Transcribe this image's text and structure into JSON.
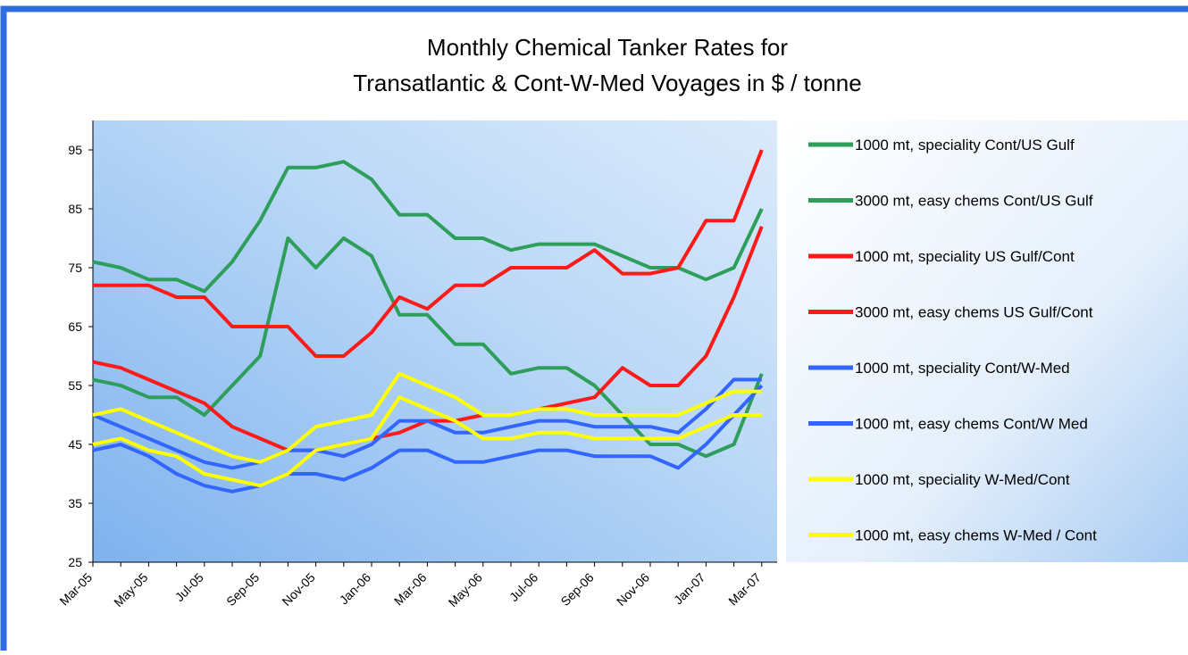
{
  "chart_data": {
    "type": "line",
    "title": "Monthly Chemical Tanker Rates for",
    "subtitle": "Transatlantic & Cont-W-Med Voyages in $ / tonne",
    "categories": [
      "Mar-05",
      null,
      "May-05",
      null,
      "Jul-05",
      null,
      "Sep-05",
      null,
      "Nov-05",
      null,
      "Jan-06",
      null,
      "Mar-06",
      null,
      "May-06",
      null,
      "Jul-06",
      null,
      "Sep-06",
      null,
      "Nov-06",
      null,
      "Jan-07",
      null,
      "Mar-07"
    ],
    "series": [
      {
        "name": "1000 mt, speciality Cont/US Gulf",
        "color": "#2e9e5b",
        "values": [
          76,
          75,
          73,
          73,
          71,
          76,
          83,
          92,
          92,
          93,
          90,
          84,
          84,
          80,
          80,
          78,
          79,
          79,
          79,
          77,
          75,
          75,
          73,
          75,
          85
        ]
      },
      {
        "name": "3000 mt, easy chems Cont/US Gulf",
        "color": "#2e9e5b",
        "values": [
          56,
          55,
          53,
          53,
          50,
          55,
          60,
          80,
          75,
          80,
          77,
          67,
          67,
          62,
          62,
          57,
          58,
          58,
          55,
          50,
          45,
          45,
          43,
          45,
          57
        ]
      },
      {
        "name": "1000 mt, speciality US Gulf/Cont",
        "color": "#ff1a1a",
        "values": [
          72,
          72,
          72,
          70,
          70,
          65,
          65,
          65,
          60,
          60,
          64,
          70,
          68,
          72,
          72,
          75,
          75,
          75,
          78,
          74,
          74,
          75,
          83,
          83,
          95
        ]
      },
      {
        "name": "3000 mt, easy chems US Gulf/Cont",
        "color": "#ff1a1a",
        "values": [
          59,
          58,
          56,
          54,
          52,
          48,
          46,
          44,
          44,
          45,
          46,
          47,
          49,
          49,
          50,
          50,
          51,
          52,
          53,
          58,
          55,
          55,
          60,
          70,
          82
        ]
      },
      {
        "name": "1000 mt, speciality Cont/W-Med",
        "color": "#3366ff",
        "values": [
          50,
          48,
          46,
          44,
          42,
          41,
          42,
          44,
          44,
          43,
          45,
          49,
          49,
          47,
          47,
          48,
          49,
          49,
          48,
          48,
          48,
          47,
          51,
          56,
          56
        ]
      },
      {
        "name": "1000 mt, easy chems Cont/W Med",
        "color": "#3366ff",
        "values": [
          44,
          45,
          43,
          40,
          38,
          37,
          38,
          40,
          40,
          39,
          41,
          44,
          44,
          42,
          42,
          43,
          44,
          44,
          43,
          43,
          43,
          41,
          45,
          50,
          55
        ]
      },
      {
        "name": "1000 mt, speciality W-Med/Cont",
        "color": "#ffff00",
        "values": [
          50,
          51,
          49,
          47,
          45,
          43,
          42,
          44,
          48,
          49,
          50,
          57,
          55,
          53,
          50,
          50,
          51,
          51,
          50,
          50,
          50,
          50,
          52,
          54,
          54
        ]
      },
      {
        "name": "1000 mt, easy chems W-Med / Cont",
        "color": "#ffff00",
        "values": [
          45,
          46,
          44,
          43,
          40,
          39,
          38,
          40,
          44,
          45,
          46,
          53,
          51,
          49,
          46,
          46,
          47,
          47,
          46,
          46,
          46,
          46,
          48,
          50,
          50
        ]
      }
    ],
    "ylim": [
      25,
      100
    ],
    "yticks": [
      25,
      35,
      45,
      55,
      65,
      75,
      85,
      95
    ],
    "grid": false,
    "legend": "right"
  }
}
